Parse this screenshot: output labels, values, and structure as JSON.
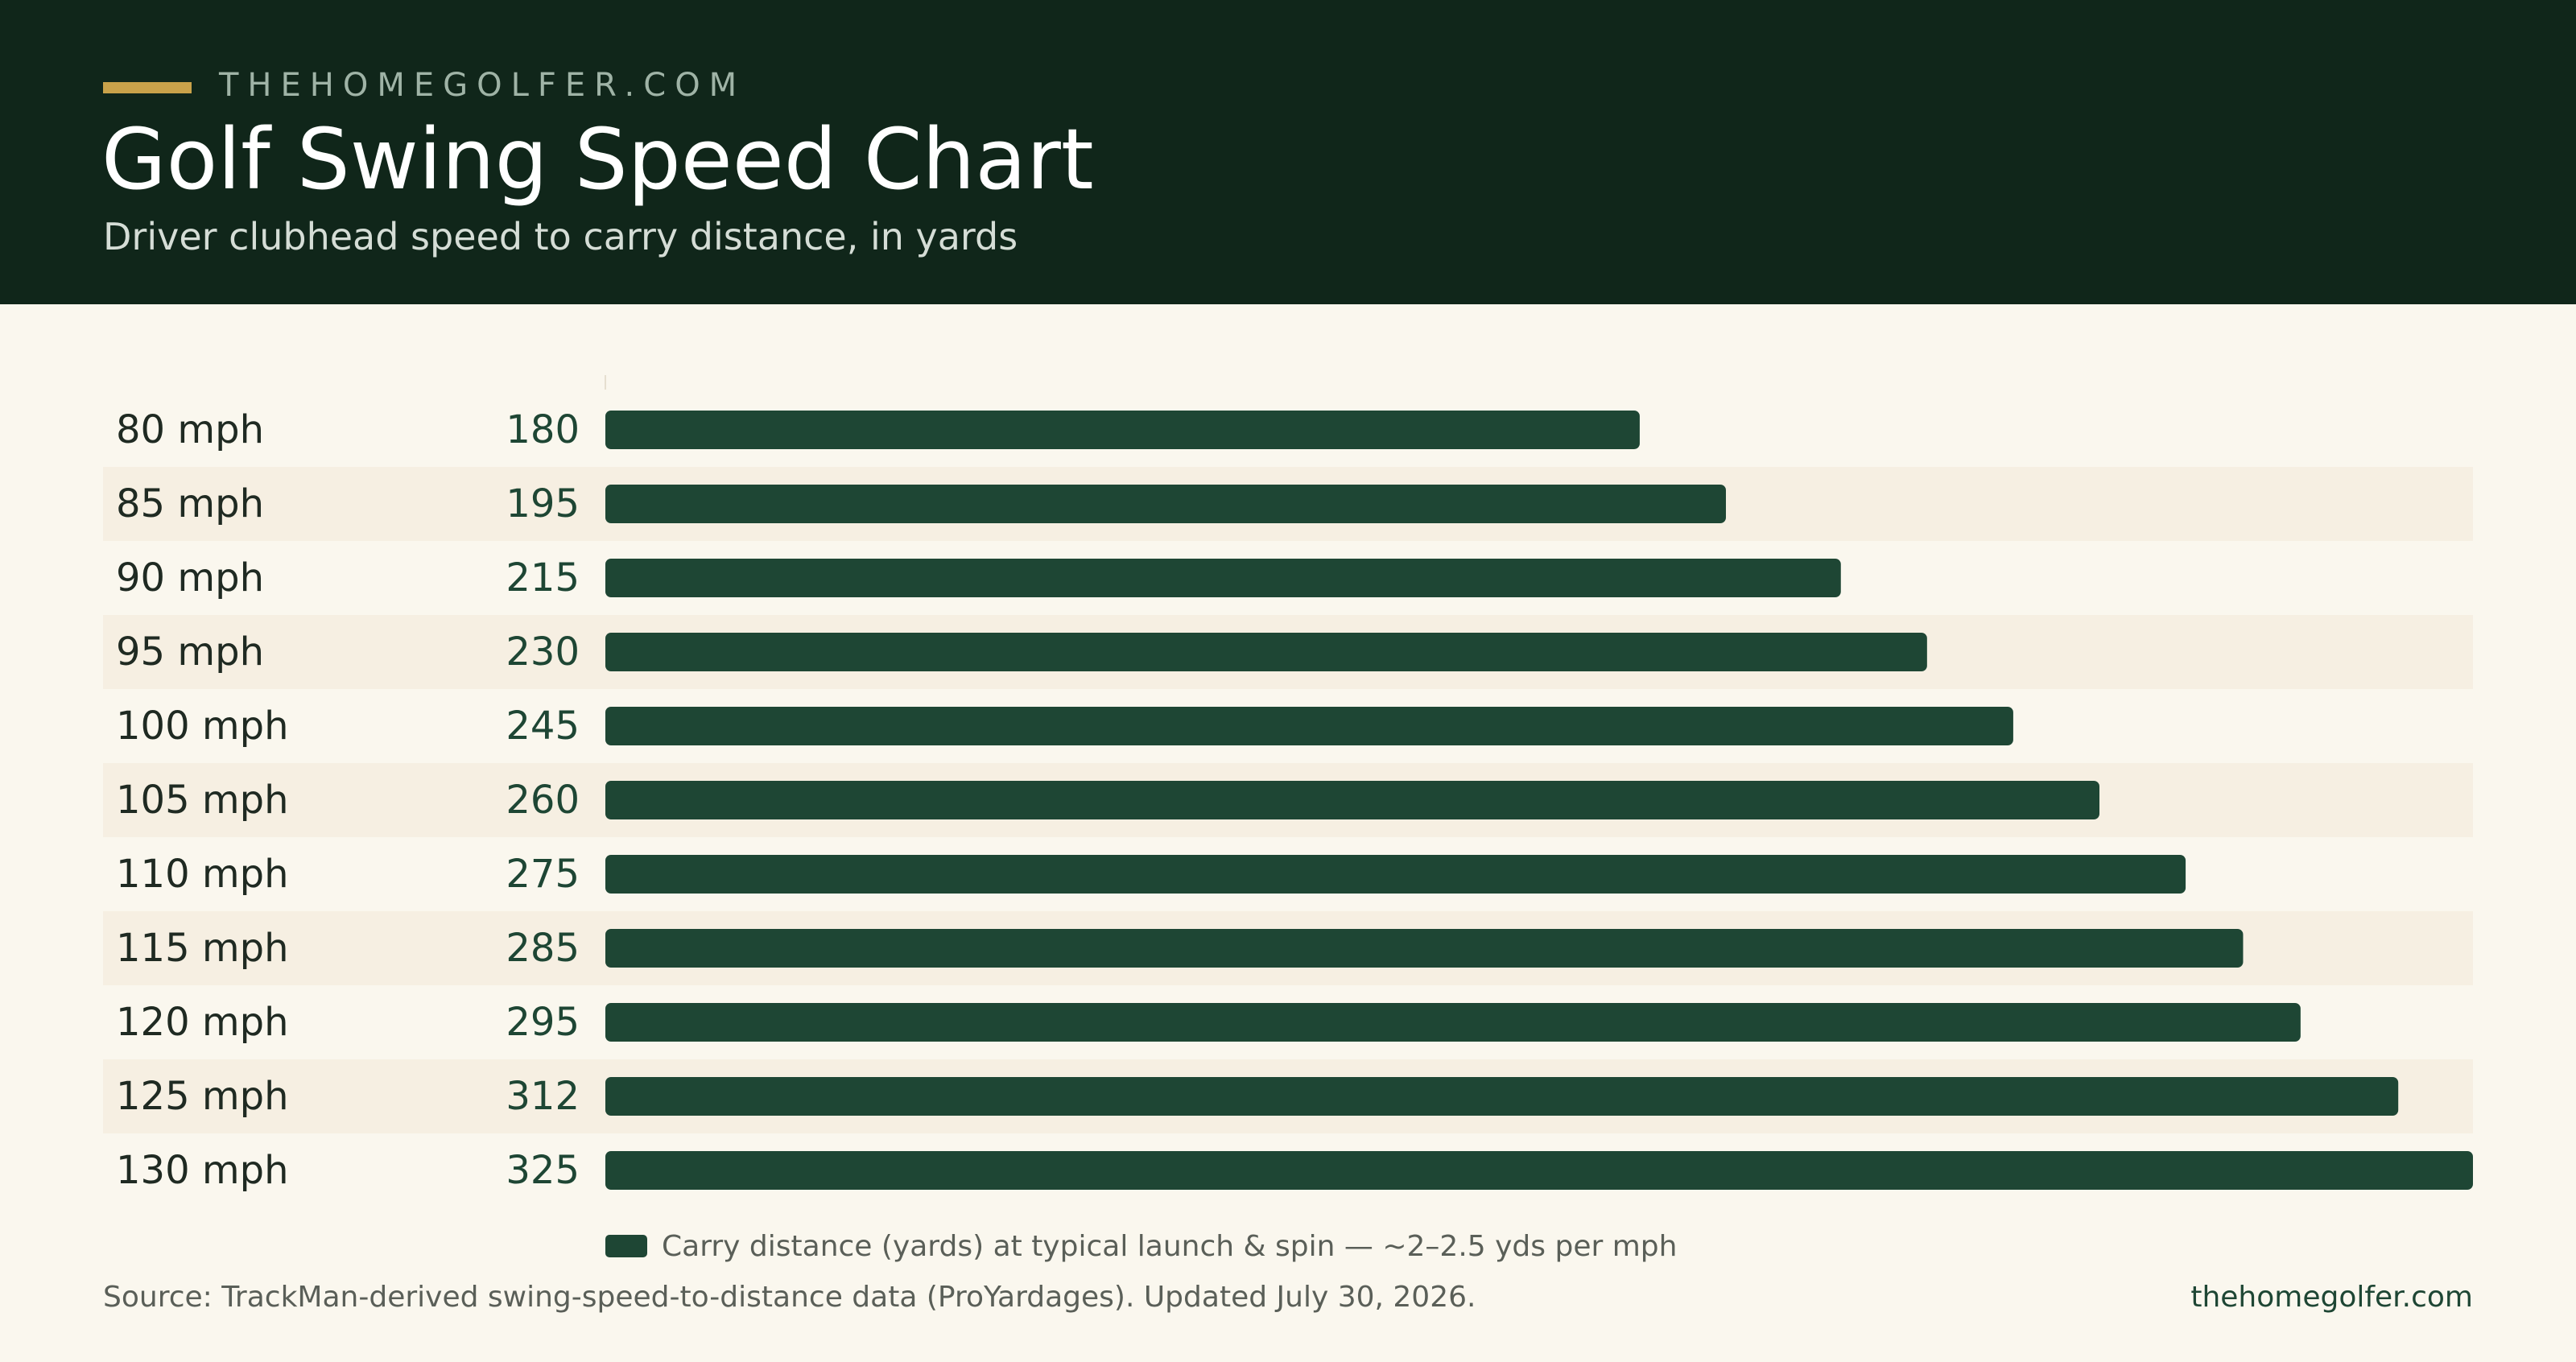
{
  "header": {
    "brand": "THEHOMEGOLFER.COM",
    "title": "Golf Swing Speed Chart",
    "subtitle": "Driver clubhead speed to carry distance, in yards"
  },
  "colors": {
    "header_bg": "#10261a",
    "accent": "#c9a24a",
    "bar": "#1e4634",
    "background": "#faf7ee",
    "row_stripe": "#f6efe2"
  },
  "chart_data": {
    "type": "bar",
    "orientation": "horizontal",
    "title": "Golf Swing Speed Chart",
    "subtitle": "Driver clubhead speed to carry distance, in yards",
    "categories": [
      "80 mph",
      "85 mph",
      "90 mph",
      "95 mph",
      "100 mph",
      "105 mph",
      "110 mph",
      "115 mph",
      "120 mph",
      "125 mph",
      "130 mph"
    ],
    "values": [
      180,
      195,
      215,
      230,
      245,
      260,
      275,
      285,
      295,
      312,
      325
    ],
    "xlim": [
      0,
      325
    ],
    "grid": false,
    "data_labels": true,
    "legend": {
      "entries": [
        "Carry distance (yards) at typical launch & spin — ~2–2.5 yds per mph"
      ],
      "placement": "bottom"
    }
  },
  "footer": {
    "source": "Source: TrackMan-derived swing-speed-to-distance data (ProYardages). Updated July 30, 2026.",
    "credit": "thehomegolfer.com"
  }
}
